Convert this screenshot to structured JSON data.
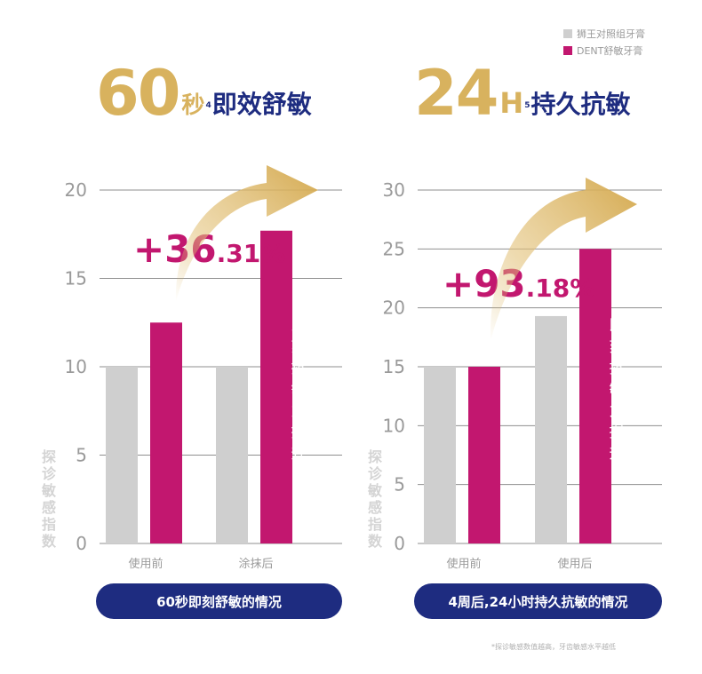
{
  "legend": [
    {
      "label": "狮王对照组牙膏",
      "color": "#cfcfcf"
    },
    {
      "label": "DENT舒敏牙膏",
      "color": "#c2176f"
    }
  ],
  "headline_left": {
    "number": "60",
    "unit": "秒",
    "sup": "4",
    "text": "即效舒敏"
  },
  "headline_right": {
    "number": "24",
    "unit": "H",
    "sup": "5",
    "text": "持久抗敏"
  },
  "colors": {
    "gold": "#d8b25e",
    "navy": "#1e2c80",
    "magenta": "#c2176f",
    "grey_bar": "#cfcfcf"
  },
  "chart_data": [
    {
      "type": "bar",
      "categories": [
        "使用前",
        "涂抹后"
      ],
      "series": [
        {
          "name": "狮王对照组牙膏",
          "values": [
            10,
            10
          ]
        },
        {
          "name": "DENT舒敏牙膏",
          "values": [
            12.5,
            17.7
          ]
        }
      ],
      "ylabel": "探诊敏感指数",
      "ylim": [
        0,
        20
      ],
      "yticks": [
        0,
        5,
        10,
        15,
        20
      ],
      "grid": true,
      "annotation": "+36.31%",
      "bar_label": "即刻抗敏力提升",
      "caption": "60秒即刻舒敏的情况"
    },
    {
      "type": "bar",
      "categories": [
        "使用前",
        "使用后"
      ],
      "series": [
        {
          "name": "狮王对照组牙膏",
          "values": [
            15,
            19.3
          ]
        },
        {
          "name": "DENT舒敏牙膏",
          "values": [
            15,
            25
          ]
        }
      ],
      "ylabel": "探诊敏感指数",
      "ylim": [
        0,
        30
      ],
      "yticks": [
        0,
        5,
        10,
        15,
        20,
        25,
        30
      ],
      "grid": true,
      "annotation": "+93.18%",
      "bar_label": "即刻抗敏力提升",
      "caption": "4周后,24小时持久抗敏的情况"
    }
  ],
  "footnote": "*探诊敏感数值越高，牙齿敏感水平越低"
}
